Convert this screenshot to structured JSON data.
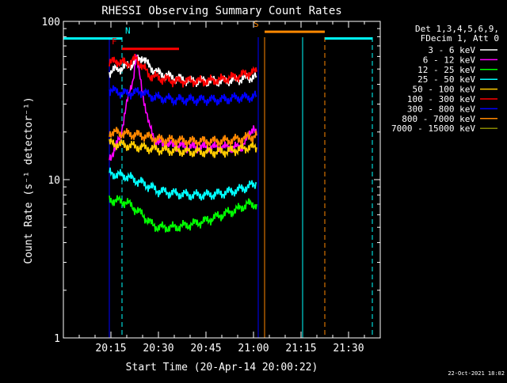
{
  "chart_data": {
    "type": "line",
    "title": "RHESSI Observing Summary Count Rates",
    "xlabel": "Start Time (20-Apr-14 20:00:22)",
    "ylabel": "Count Rate (s⁻¹ detector⁻¹)",
    "yscale": "log",
    "ylim": [
      1,
      100
    ],
    "xlim_minutes": [
      0,
      100
    ],
    "x_ticks": [
      "20:15",
      "20:30",
      "20:45",
      "21:00",
      "21:15",
      "21:30"
    ],
    "x_tick_minutes": [
      15,
      30,
      45,
      60,
      75,
      90
    ],
    "y_ticks": [
      "1",
      "10",
      "100"
    ],
    "y_tick_values": [
      1,
      10,
      100
    ],
    "legend": {
      "placement": "right",
      "header": [
        "Det 1,3,4,5,6,9,",
        "FDecim 1, Att 0"
      ]
    },
    "series": [
      {
        "name": "3 - 6 keV",
        "color": "#ffffff",
        "points": [
          [
            14.5,
            48
          ],
          [
            17,
            50
          ],
          [
            20,
            52
          ],
          [
            23,
            56
          ],
          [
            25,
            60
          ],
          [
            27,
            52
          ],
          [
            30,
            47
          ],
          [
            35,
            44
          ],
          [
            40,
            42
          ],
          [
            45,
            42
          ],
          [
            50,
            42
          ],
          [
            55,
            43
          ],
          [
            58,
            44
          ],
          [
            61,
            45
          ]
        ]
      },
      {
        "name": "6 - 12 keV",
        "color": "#ff00ff",
        "points": [
          [
            14.5,
            14
          ],
          [
            16,
            15
          ],
          [
            18,
            19
          ],
          [
            20,
            30
          ],
          [
            22,
            44
          ],
          [
            23,
            60
          ],
          [
            24,
            46
          ],
          [
            25,
            36
          ],
          [
            26,
            28
          ],
          [
            27,
            22
          ],
          [
            28,
            20
          ],
          [
            29,
            18
          ],
          [
            30,
            17
          ],
          [
            40,
            16
          ],
          [
            50,
            16
          ],
          [
            56,
            16
          ],
          [
            58,
            18
          ],
          [
            60,
            22
          ],
          [
            61,
            19
          ]
        ]
      },
      {
        "name": "12 - 25 keV",
        "color": "#00ff00",
        "points": [
          [
            14.5,
            7.5
          ],
          [
            20,
            7.2
          ],
          [
            25,
            6.0
          ],
          [
            28,
            5.2
          ],
          [
            30,
            5.0
          ],
          [
            35,
            5.0
          ],
          [
            40,
            5.2
          ],
          [
            45,
            5.5
          ],
          [
            50,
            6.0
          ],
          [
            55,
            6.5
          ],
          [
            58,
            7.0
          ],
          [
            61,
            7.0
          ]
        ]
      },
      {
        "name": "25 - 50 keV",
        "color": "#00ffff",
        "points": [
          [
            14.5,
            11
          ],
          [
            20,
            10.5
          ],
          [
            25,
            9.5
          ],
          [
            30,
            8.5
          ],
          [
            35,
            8.2
          ],
          [
            40,
            8.0
          ],
          [
            45,
            8.0
          ],
          [
            50,
            8.2
          ],
          [
            55,
            8.6
          ],
          [
            58,
            9.0
          ],
          [
            61,
            9.5
          ]
        ]
      },
      {
        "name": "50 - 100 keV",
        "color": "#ffcc00",
        "points": [
          [
            14.5,
            17
          ],
          [
            20,
            16.5
          ],
          [
            25,
            16
          ],
          [
            30,
            15.5
          ],
          [
            40,
            15
          ],
          [
            50,
            15
          ],
          [
            55,
            15.5
          ],
          [
            58,
            16
          ],
          [
            61,
            16
          ]
        ]
      },
      {
        "name": "100 - 300 keV",
        "color": "#ff0000",
        "points": [
          [
            14.5,
            55
          ],
          [
            17,
            56
          ],
          [
            20,
            54
          ],
          [
            23,
            58
          ],
          [
            25,
            52
          ],
          [
            27,
            46
          ],
          [
            30,
            44
          ],
          [
            35,
            42
          ],
          [
            40,
            42
          ],
          [
            45,
            42
          ],
          [
            50,
            43
          ],
          [
            55,
            45
          ],
          [
            58,
            47
          ],
          [
            61,
            48
          ]
        ]
      },
      {
        "name": "300 - 800 keV",
        "color": "#0000ff",
        "points": [
          [
            14.5,
            37
          ],
          [
            17,
            36
          ],
          [
            20,
            35
          ],
          [
            25,
            36
          ],
          [
            27,
            34
          ],
          [
            30,
            33
          ],
          [
            35,
            32
          ],
          [
            40,
            32
          ],
          [
            45,
            32
          ],
          [
            50,
            32
          ],
          [
            55,
            33
          ],
          [
            58,
            33
          ],
          [
            61,
            34
          ]
        ]
      },
      {
        "name": "800 - 7000 keV",
        "color": "#ff8800",
        "points": [
          [
            14.5,
            20
          ],
          [
            20,
            19.5
          ],
          [
            25,
            19
          ],
          [
            30,
            18
          ],
          [
            40,
            17.5
          ],
          [
            50,
            17.5
          ],
          [
            55,
            18
          ],
          [
            58,
            18.5
          ],
          [
            61,
            19
          ]
        ]
      },
      {
        "name": "7000 - 15000 keV",
        "color": "#888800",
        "points": []
      }
    ],
    "flag_segments": [
      {
        "label": "",
        "color": "#00ffff",
        "y": 78,
        "x0": 0,
        "x1": 18.5
      },
      {
        "label": "N",
        "color": "#00ffff",
        "y": 78,
        "x0": null,
        "x1": null
      },
      {
        "label": "",
        "color": "#00ffff",
        "y": 78,
        "x0": 82.5,
        "x1": 97.5
      },
      {
        "label": "F",
        "color": "#ff0000",
        "y": 67,
        "x0": 18.5,
        "x1": 36.5
      },
      {
        "label": "S",
        "color": "#ff8800",
        "y": 86,
        "x0": 63.5,
        "x1": 82.5
      }
    ],
    "vertical_markers": [
      {
        "color": "#00ffff",
        "style": "solid",
        "x": 0
      },
      {
        "color": "#0000ff",
        "style": "solid",
        "x": 14.5
      },
      {
        "color": "#00ffff",
        "style": "dashed",
        "x": 18.5
      },
      {
        "color": "#0000ff",
        "style": "solid",
        "x": 61.5
      },
      {
        "color": "#ff8800",
        "style": "solid",
        "x": 63.5
      },
      {
        "color": "#00ffff",
        "style": "solid",
        "x": 75.5
      },
      {
        "color": "#ff8800",
        "style": "dashed",
        "x": 82.5
      },
      {
        "color": "#00ffff",
        "style": "dashed",
        "x": 97.5
      }
    ],
    "footer_date": "22-Oct-2021 18:02"
  }
}
